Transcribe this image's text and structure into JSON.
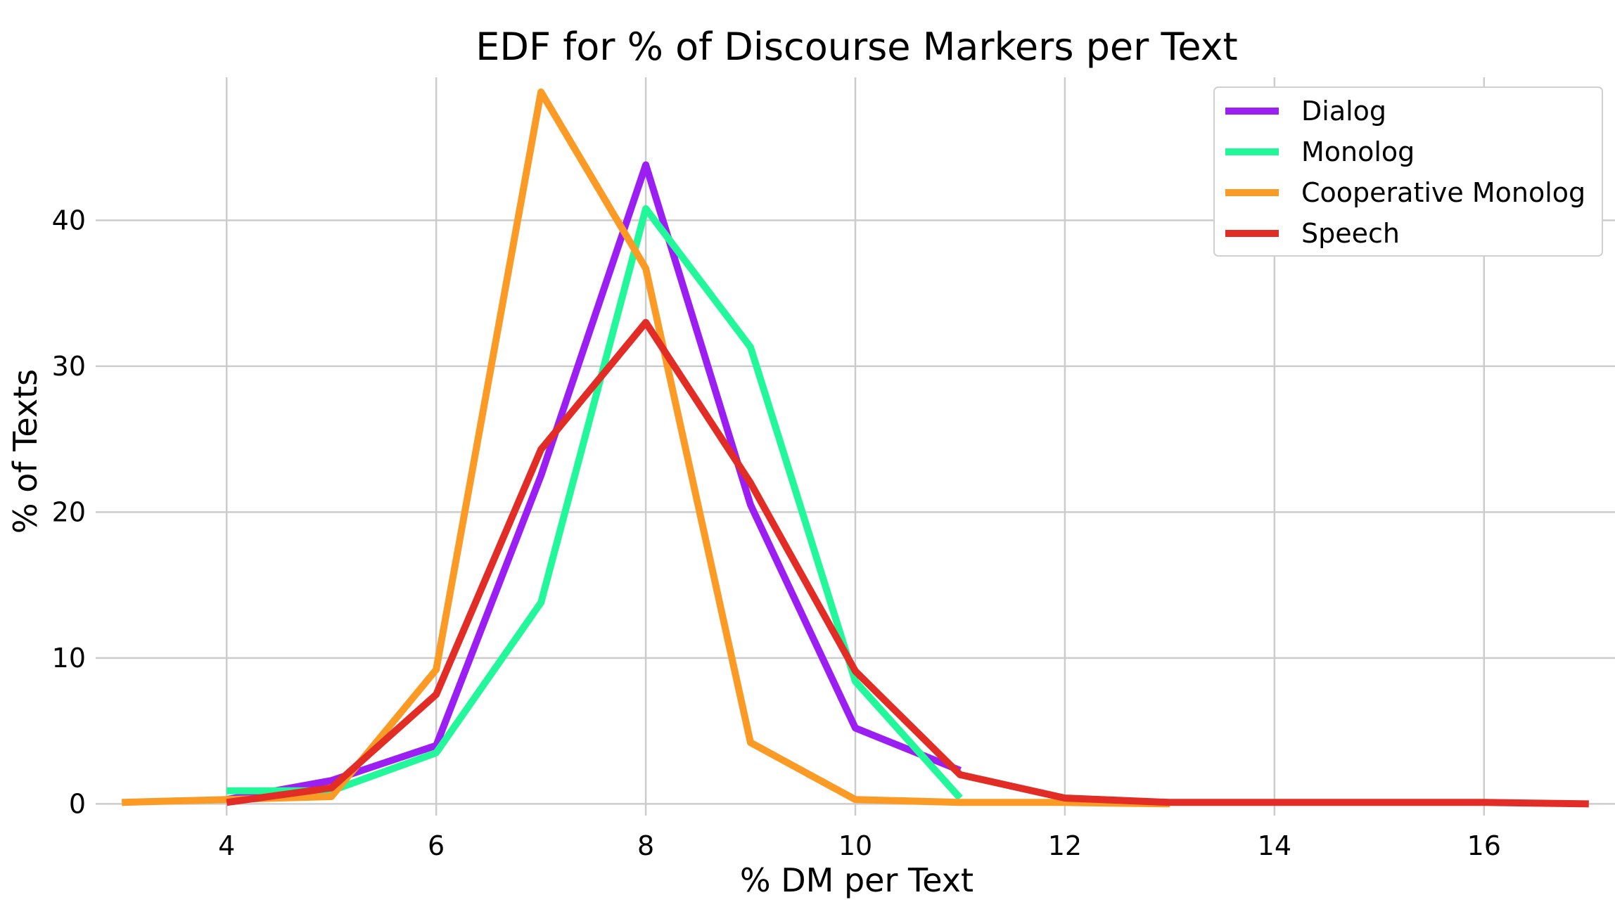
{
  "chart_data": {
    "type": "line",
    "title": "EDF for % of Discourse Markers per Text",
    "xlabel": "% DM per Text",
    "ylabel": "% of Texts",
    "xlim": [
      2.75,
      17.25
    ],
    "ylim": [
      -0.8,
      49.8
    ],
    "xticks": [
      4,
      6,
      8,
      10,
      12,
      14,
      16
    ],
    "yticks": [
      0,
      10,
      20,
      30,
      40
    ],
    "grid": true,
    "legend_position": "top-right",
    "series": [
      {
        "name": "Dialog",
        "color": "#9b1ff3",
        "x": [
          4,
          5,
          6,
          7,
          8,
          9,
          10,
          11
        ],
        "y": [
          0.3,
          1.6,
          4.0,
          22.5,
          43.8,
          20.5,
          5.2,
          2.3
        ]
      },
      {
        "name": "Monolog",
        "color": "#22f79a",
        "x": [
          4,
          5,
          6,
          7,
          8,
          9,
          10,
          11
        ],
        "y": [
          0.9,
          0.9,
          3.5,
          13.8,
          40.8,
          31.3,
          8.4,
          0.4
        ]
      },
      {
        "name": "Cooperative Monolog",
        "color": "#fb9b25",
        "x": [
          3,
          4,
          5,
          6,
          7,
          8,
          9,
          10,
          11,
          12,
          13
        ],
        "y": [
          0.1,
          0.3,
          0.5,
          9.2,
          48.8,
          36.7,
          4.2,
          0.3,
          0.1,
          0.1,
          0.0
        ]
      },
      {
        "name": "Speech",
        "color": "#e12d25",
        "x": [
          4,
          5,
          6,
          7,
          8,
          9,
          10,
          11,
          12,
          13,
          14,
          15,
          16,
          17
        ],
        "y": [
          0.1,
          1.1,
          7.5,
          24.3,
          33.0,
          22.0,
          9.1,
          2.0,
          0.4,
          0.1,
          0.1,
          0.1,
          0.1,
          0.0
        ]
      }
    ]
  }
}
